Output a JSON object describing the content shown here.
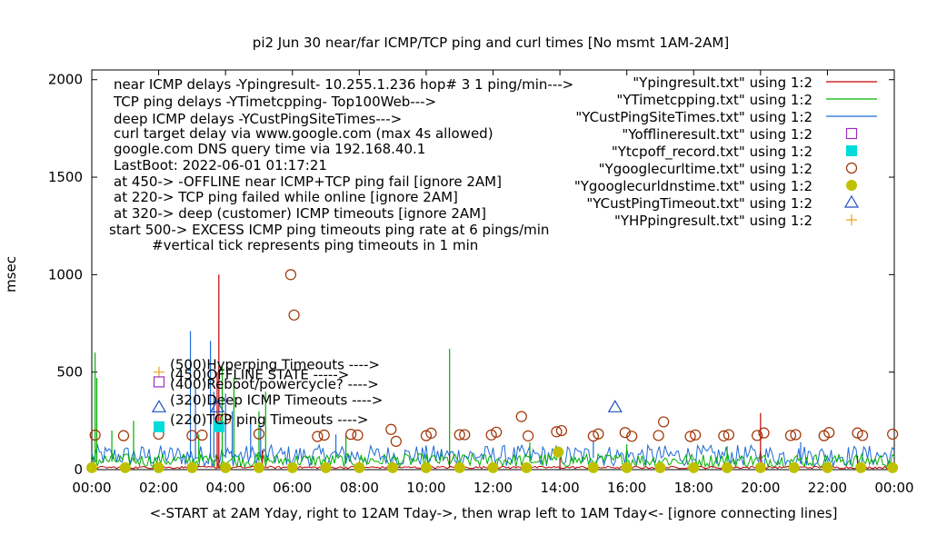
{
  "chart_data": {
    "type": "line",
    "title": "pi2  Jun 30  near/far ICMP/TCP ping and curl times [No msmt 1AM-2AM]",
    "xlabel": "<-START at 2AM Yday, right to 12AM Tday->, then wrap left to 1AM Tday<- [ignore connecting lines]",
    "ylabel": "msec",
    "x_range_hours": [
      0,
      24
    ],
    "ylim": [
      0,
      2050
    ],
    "x_ticks": [
      "00:00",
      "02:00",
      "04:00",
      "06:00",
      "08:00",
      "10:00",
      "12:00",
      "14:00",
      "16:00",
      "18:00",
      "20:00",
      "22:00",
      "00:00"
    ],
    "y_ticks": [
      "0",
      "500",
      "1000",
      "1500",
      "2000"
    ],
    "y_tick_values": [
      0,
      500,
      1000,
      1500,
      2000
    ],
    "grid": false,
    "legend_placement": "top-right",
    "colors": {
      "near_icmp": "#c00000",
      "tcp_ping": "#00b000",
      "deep_icmp": "#1e6ad7",
      "offline": "#9b30c0",
      "tcpoff": "#00dcdc",
      "curl": "#a03000",
      "dns": "#c0c000",
      "cust_timeout": "#2050c0",
      "hp": "#f0a020"
    },
    "info_lines": [
      "near ICMP delays -Ypingresult- 10.255.1.236 hop# 3 1 ping/min--->",
      "TCP ping delays -YTimetcpping- Top100Web--->",
      "deep ICMP delays -YCustPingSiteTimes--->",
      "curl target delay via www.google.com (max 4s allowed)",
      "google.com DNS query time via 192.168.40.1",
      "LastBoot: 2022-06-01 01:17:21",
      "at 450-> -OFFLINE near ICMP+TCP ping fail [ignore 2AM]",
      "at 220-> TCP ping failed while online [ignore 2AM]",
      "at 320-> deep (customer) ICMP timeouts [ignore 2AM]",
      "start 500-> EXCESS ICMP ping timeouts ping rate at 6 pings/min",
      "#vertical tick represents ping timeouts in 1 min"
    ],
    "legend": [
      {
        "label": "\"Ypingresult.txt\" using 1:2",
        "style": "line",
        "color_key": "near_icmp"
      },
      {
        "label": "\"YTimetcpping.txt\" using 1:2",
        "style": "line",
        "color_key": "tcp_ping"
      },
      {
        "label": "\"YCustPingSiteTimes.txt\" using 1:2",
        "style": "line",
        "color_key": "deep_icmp"
      },
      {
        "label": "\"Yofflineresult.txt\" using 1:2",
        "style": "open-square",
        "color_key": "offline"
      },
      {
        "label": "\"Ytcpoff_record.txt\" using 1:2",
        "style": "filled-square",
        "color_key": "tcpoff"
      },
      {
        "label": "\"Ygooglecurltime.txt\" using 1:2",
        "style": "open-circle",
        "color_key": "curl"
      },
      {
        "label": "\"Ygooglecurldnstime.txt\" using 1:2",
        "style": "filled-circle",
        "color_key": "dns"
      },
      {
        "label": "\"YCustPingTimeout.txt\" using 1:2",
        "style": "open-triangle",
        "color_key": "cust_timeout"
      },
      {
        "label": "\"YHPpingresult.txt\" using 1:2",
        "style": "plus",
        "color_key": "hp"
      }
    ],
    "key_labels": [
      {
        "text": "(500)Hyperping Timeouts ---->",
        "y": 500,
        "style": "plus",
        "color_key": "hp"
      },
      {
        "text": "(450)OFFLINE STATE ----->",
        "y": 450,
        "style": "open-square",
        "color_key": "offline"
      },
      {
        "text": "(400)Reboot/powercycle? ---->",
        "y": 400,
        "style": "none",
        "color_key": "curl"
      },
      {
        "text": "(320)Deep ICMP Timeouts ---->",
        "y": 320,
        "style": "open-triangle",
        "color_key": "cust_timeout"
      },
      {
        "text": "(220)TCP ping Timeouts ---->",
        "y": 220,
        "style": "filled-square",
        "color_key": "tcpoff"
      }
    ],
    "series": [
      {
        "name": "\"Ypingresult.txt\" using 1:2",
        "color_key": "near_icmp",
        "baseline_ms": 10,
        "spikes": [
          {
            "x": 3.8,
            "y": 1000
          },
          {
            "x": 3.75,
            "y": 500
          },
          {
            "x": 5.1,
            "y": 100
          },
          {
            "x": 10.7,
            "y": 80
          },
          {
            "x": 14.0,
            "y": 60
          },
          {
            "x": 20.0,
            "y": 290
          },
          {
            "x": 22.9,
            "y": 70
          }
        ]
      },
      {
        "name": "\"YTimetcpping.txt\" using 1:2",
        "color_key": "tcp_ping",
        "baseline_ms": 40,
        "spikes": [
          {
            "x": 0.1,
            "y": 600
          },
          {
            "x": 0.15,
            "y": 470
          },
          {
            "x": 0.6,
            "y": 200
          },
          {
            "x": 1.25,
            "y": 250
          },
          {
            "x": 3.2,
            "y": 180
          },
          {
            "x": 3.9,
            "y": 530
          },
          {
            "x": 4.25,
            "y": 470
          },
          {
            "x": 5.0,
            "y": 300
          },
          {
            "x": 5.2,
            "y": 400
          },
          {
            "x": 7.6,
            "y": 180
          },
          {
            "x": 10.7,
            "y": 620
          },
          {
            "x": 13.1,
            "y": 140
          },
          {
            "x": 16.0,
            "y": 130
          },
          {
            "x": 19.0,
            "y": 120
          }
        ]
      },
      {
        "name": "\"YCustPingSiteTimes.txt\" using 1:2",
        "color_key": "deep_icmp",
        "baseline_ms": 60,
        "spikes": [
          {
            "x": 2.95,
            "y": 710
          },
          {
            "x": 3.1,
            "y": 420
          },
          {
            "x": 3.55,
            "y": 660
          },
          {
            "x": 3.65,
            "y": 400
          },
          {
            "x": 4.0,
            "y": 390
          },
          {
            "x": 4.2,
            "y": 300
          },
          {
            "x": 4.75,
            "y": 260
          },
          {
            "x": 5.05,
            "y": 220
          },
          {
            "x": 7.3,
            "y": 180
          },
          {
            "x": 15.0,
            "y": 150
          },
          {
            "x": 21.2,
            "y": 140
          }
        ]
      },
      {
        "name": "\"Ygooglecurltime.txt\" using 1:2",
        "color_key": "curl",
        "points": [
          [
            0.1,
            177
          ],
          [
            0.95,
            174
          ],
          [
            2.0,
            182
          ],
          [
            3.0,
            175
          ],
          [
            3.3,
            177
          ],
          [
            4.0,
            260
          ],
          [
            5.0,
            183
          ],
          [
            5.95,
            1000
          ],
          [
            6.05,
            793
          ],
          [
            6.75,
            170
          ],
          [
            6.95,
            177
          ],
          [
            7.75,
            181
          ],
          [
            7.95,
            177
          ],
          [
            8.95,
            206
          ],
          [
            9.1,
            145
          ],
          [
            10.0,
            174
          ],
          [
            10.15,
            187
          ],
          [
            11.0,
            179
          ],
          [
            11.15,
            179
          ],
          [
            11.95,
            178
          ],
          [
            12.1,
            192
          ],
          [
            12.85,
            272
          ],
          [
            13.05,
            173
          ],
          [
            13.9,
            194
          ],
          [
            14.05,
            200
          ],
          [
            15.0,
            172
          ],
          [
            15.15,
            183
          ],
          [
            15.95,
            190
          ],
          [
            16.15,
            171
          ],
          [
            16.95,
            175
          ],
          [
            17.1,
            245
          ],
          [
            17.9,
            170
          ],
          [
            18.05,
            178
          ],
          [
            18.9,
            173
          ],
          [
            19.05,
            179
          ],
          [
            19.9,
            175
          ],
          [
            20.1,
            188
          ],
          [
            20.9,
            175
          ],
          [
            21.05,
            179
          ],
          [
            21.9,
            174
          ],
          [
            22.05,
            190
          ],
          [
            22.9,
            188
          ],
          [
            23.05,
            175
          ],
          [
            23.95,
            182
          ]
        ]
      },
      {
        "name": "\"Ygooglecurldnstime.txt\" using 1:2",
        "color_key": "dns",
        "points": [
          [
            0.0,
            10
          ],
          [
            1.0,
            10
          ],
          [
            2.0,
            10
          ],
          [
            3.0,
            10
          ],
          [
            4.0,
            10
          ],
          [
            5.0,
            10
          ],
          [
            6.0,
            10
          ],
          [
            7.0,
            10
          ],
          [
            8.0,
            10
          ],
          [
            9.0,
            10
          ],
          [
            10.0,
            10
          ],
          [
            11.0,
            10
          ],
          [
            12.0,
            10
          ],
          [
            13.0,
            10
          ],
          [
            13.95,
            90
          ],
          [
            15.0,
            10
          ],
          [
            16.0,
            10
          ],
          [
            17.0,
            10
          ],
          [
            18.0,
            10
          ],
          [
            19.0,
            10
          ],
          [
            20.0,
            10
          ],
          [
            21.0,
            10
          ],
          [
            22.0,
            10
          ],
          [
            23.0,
            10
          ],
          [
            23.95,
            10
          ]
        ]
      },
      {
        "name": "\"YCustPingTimeout.txt\" using 1:2",
        "color_key": "cust_timeout",
        "points": [
          [
            3.75,
            320
          ],
          [
            15.65,
            320
          ]
        ]
      },
      {
        "name": "\"Ytcpoff_record.txt\" using 1:2",
        "color_key": "tcpoff",
        "points": [
          [
            3.8,
            220
          ]
        ]
      }
    ]
  }
}
